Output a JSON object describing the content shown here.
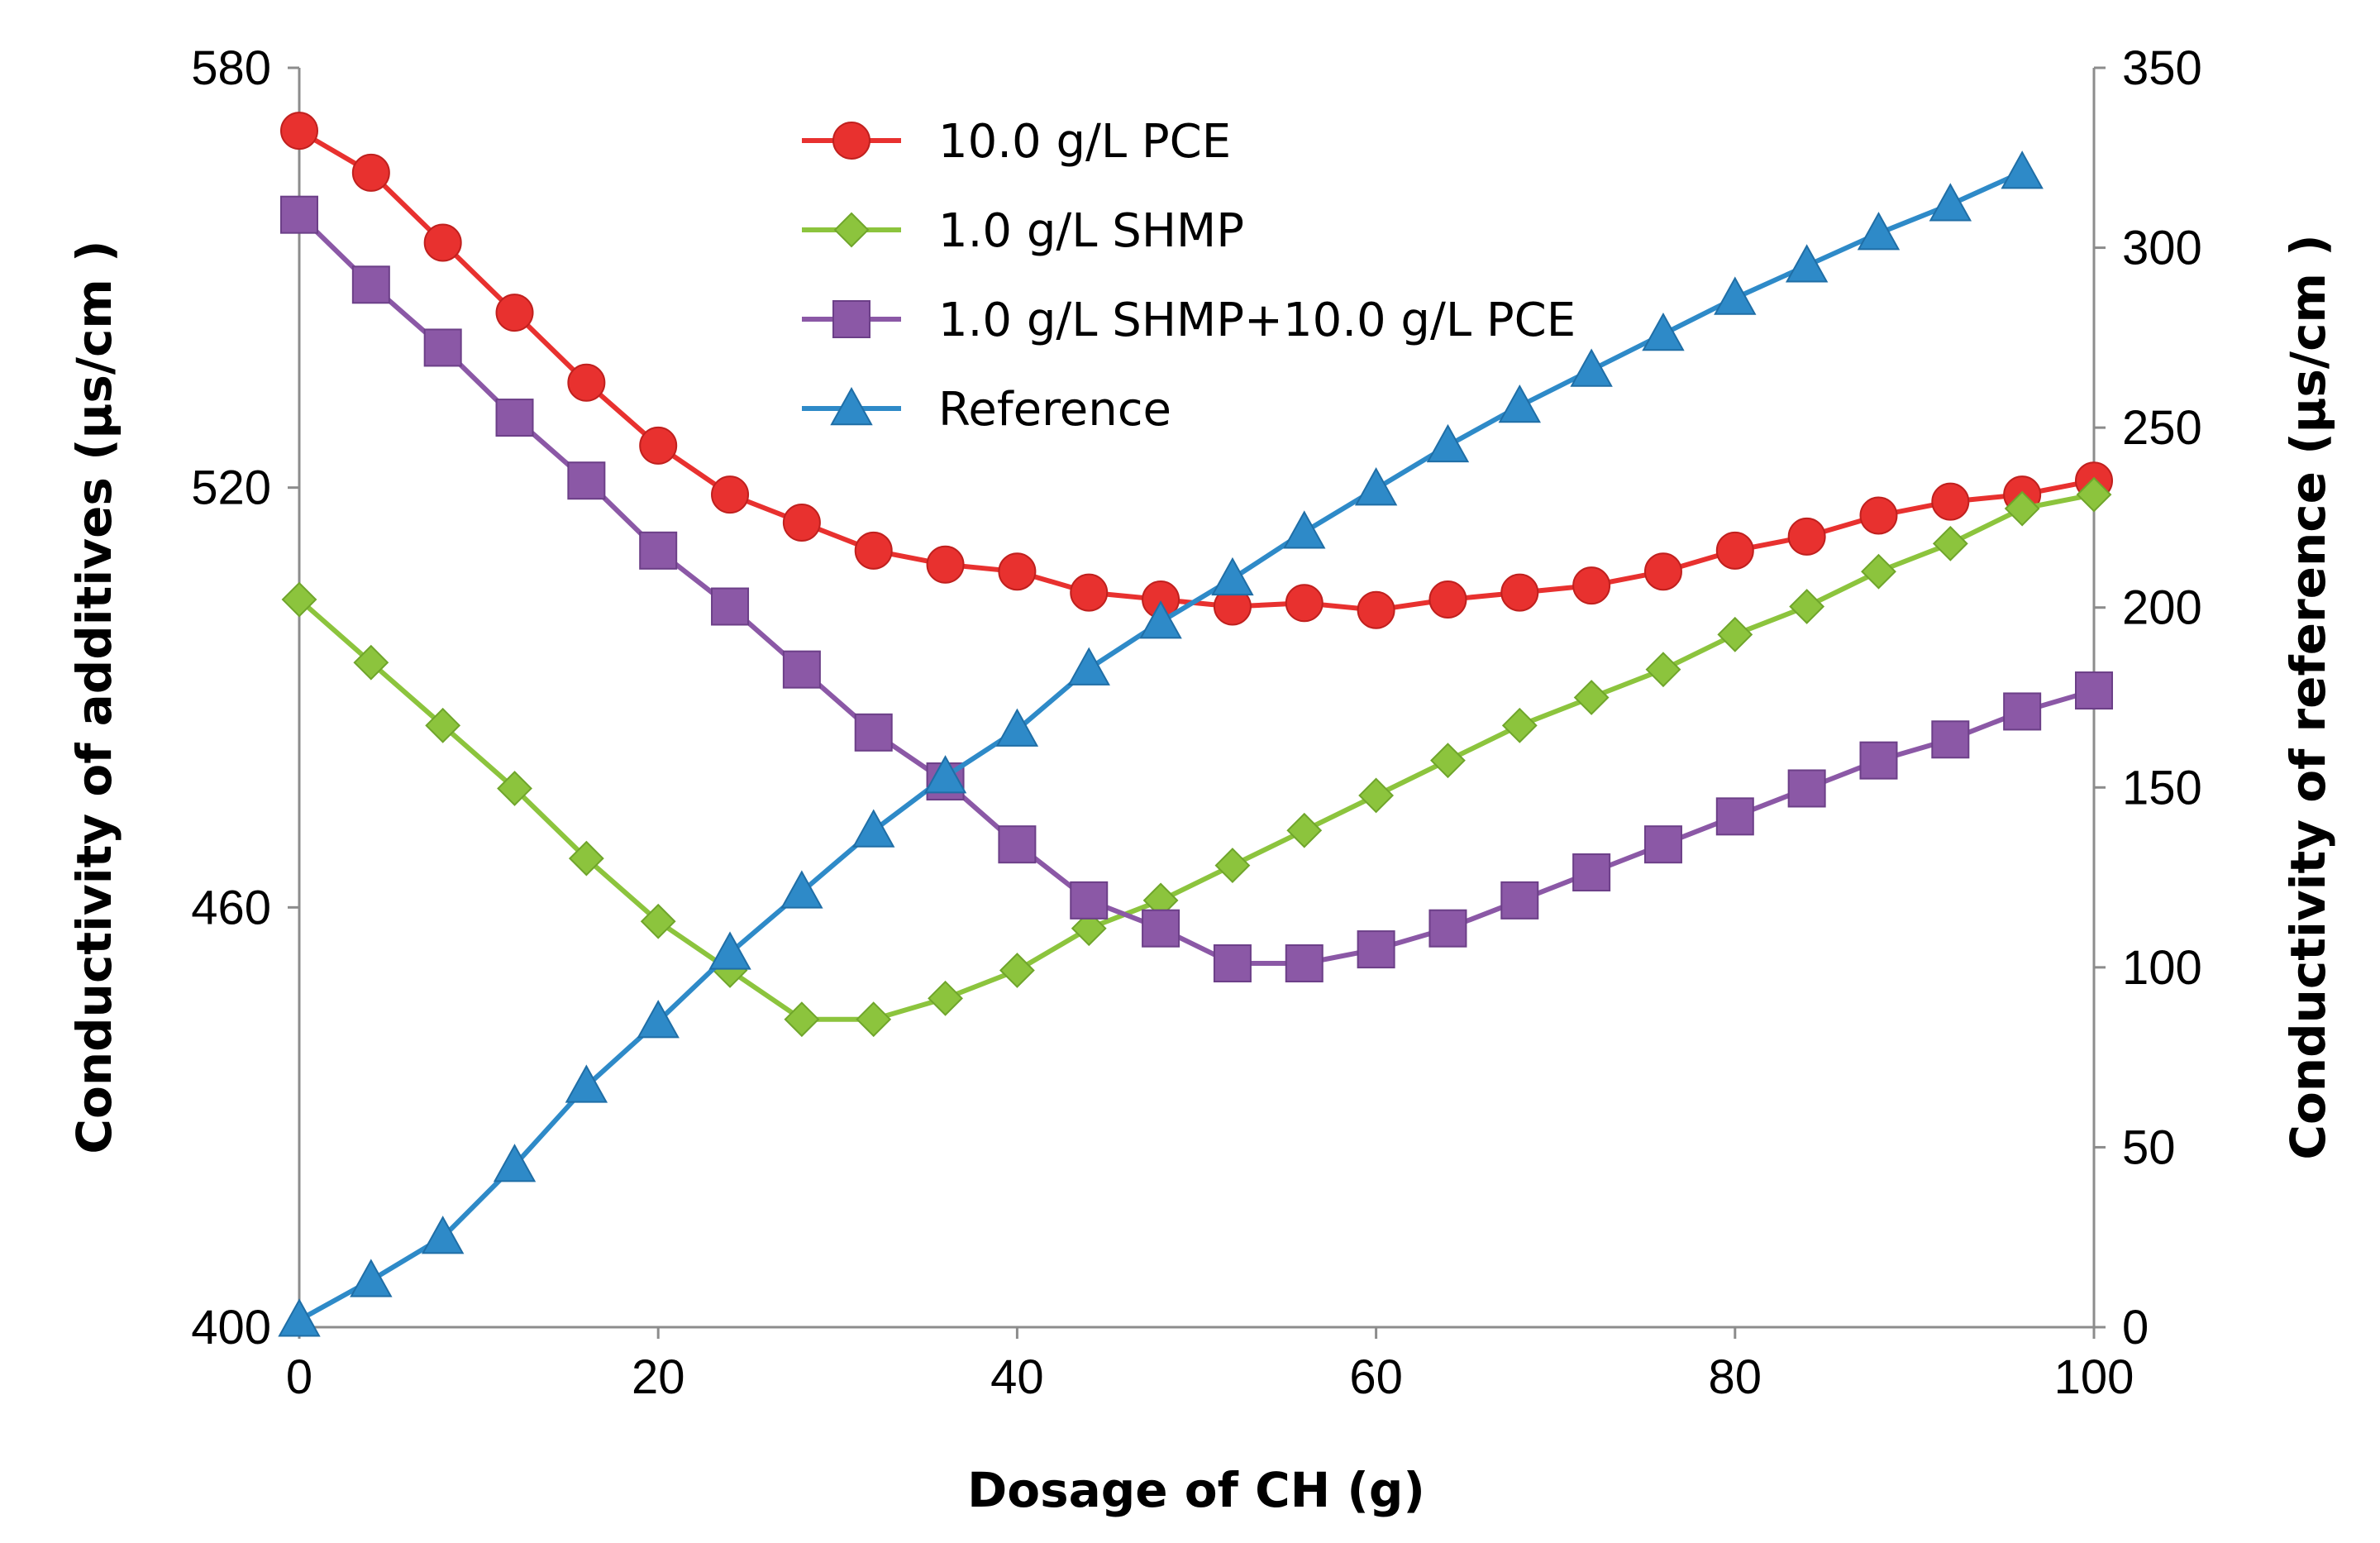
{
  "chart_data": {
    "type": "line",
    "title": "",
    "xlabel": "Dosage of CH (g)",
    "ylabel_left": "Conductivity of additives (μs/cm )",
    "ylabel_right": "Conductivity of reference (μs/cm )",
    "xlim": [
      0,
      100
    ],
    "ylim_left": [
      400,
      580
    ],
    "ylim_right": [
      0,
      350
    ],
    "x_ticks": [
      "0",
      "20",
      "40",
      "60",
      "80",
      "100"
    ],
    "y_left_ticks": [
      "400",
      "460",
      "520",
      "580"
    ],
    "y_right_ticks": [
      "0",
      "50",
      "100",
      "150",
      "200",
      "250",
      "300",
      "350"
    ],
    "grid": false,
    "legend_position": "top-center",
    "series": [
      {
        "name": "10.0 g/L PCE",
        "axis": "left",
        "marker": "circle",
        "color": "#e8312f",
        "x": [
          0,
          4,
          8,
          12,
          16,
          20,
          24,
          28,
          32,
          36,
          40,
          44,
          48,
          52,
          56,
          60,
          64,
          68,
          72,
          76,
          80,
          84,
          88,
          92,
          96,
          100
        ],
        "values": [
          571,
          565,
          555,
          545,
          535,
          526,
          519,
          515,
          511,
          509,
          508,
          505,
          504,
          503,
          503.5,
          502.5,
          504,
          505,
          506,
          508,
          511,
          513,
          516,
          518,
          519,
          521
        ]
      },
      {
        "name": "1.0 g/L SHMP",
        "axis": "left",
        "marker": "diamond",
        "color": "#8cc43d",
        "x": [
          0,
          4,
          8,
          12,
          16,
          20,
          24,
          28,
          32,
          36,
          40,
          44,
          48,
          52,
          56,
          60,
          64,
          68,
          72,
          76,
          80,
          84,
          88,
          92,
          96,
          100
        ],
        "values": [
          504,
          495,
          486,
          477,
          467,
          458,
          451,
          444,
          444,
          447,
          451,
          457,
          461,
          466,
          471,
          476,
          481,
          486,
          490,
          494,
          499,
          503,
          508,
          512,
          517,
          519
        ]
      },
      {
        "name": "1.0 g/L SHMP+10.0 g/L PCE",
        "axis": "left",
        "marker": "square",
        "color": "#8b58a6",
        "x": [
          0,
          4,
          8,
          12,
          16,
          20,
          24,
          28,
          32,
          36,
          40,
          44,
          48,
          52,
          56,
          60,
          64,
          68,
          72,
          76,
          80,
          84,
          88,
          92,
          96,
          100
        ],
        "values": [
          559,
          549,
          540,
          530,
          521,
          511,
          503,
          494,
          485,
          478,
          469,
          461,
          457,
          452,
          452,
          454,
          457,
          461,
          465,
          469,
          473,
          477,
          481,
          484,
          488,
          491
        ]
      },
      {
        "name": "Reference",
        "axis": "right",
        "marker": "triangle",
        "color": "#2e8ac8",
        "x": [
          0,
          4,
          8,
          12,
          16,
          20,
          24,
          28,
          32,
          36,
          40,
          44,
          48,
          52,
          56,
          60,
          64,
          68,
          72,
          76,
          80,
          84,
          88,
          92,
          96
        ],
        "values": [
          2,
          13,
          25,
          45,
          67,
          85,
          104,
          121,
          138,
          153,
          166,
          183,
          196,
          208,
          221,
          233,
          245,
          256,
          266,
          276,
          286,
          295,
          304,
          312,
          321
        ]
      }
    ]
  }
}
